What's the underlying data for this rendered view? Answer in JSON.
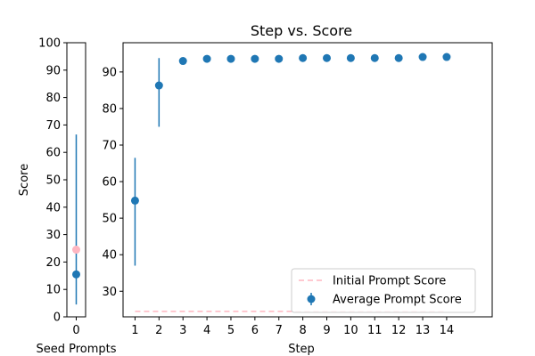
{
  "chart_data": [
    {
      "type": "scatter",
      "panel": "seed",
      "title": "",
      "xlabel": "Seed Prompts",
      "ylabel": "Score",
      "x_ticks": [
        "0"
      ],
      "y_ticks": [
        "0",
        "10",
        "20",
        "30",
        "40",
        "50",
        "60",
        "70",
        "80",
        "90",
        "100"
      ],
      "ylim": [
        0,
        100
      ],
      "series": [
        {
          "name": "Average Prompt Score",
          "color": "#1f77b4",
          "points": [
            {
              "x": 0,
              "y": 15.5,
              "err_low": 4.5,
              "err_high": 66.5
            }
          ]
        },
        {
          "name": "Initial Prompt Score",
          "color": "#ffb6c1",
          "points": [
            {
              "x": 0,
              "y": 24.5
            }
          ]
        }
      ]
    },
    {
      "type": "scatter",
      "panel": "steps",
      "title": "Step vs. Score",
      "xlabel": "Step",
      "ylabel": "",
      "x_ticks": [
        "1",
        "2",
        "3",
        "4",
        "5",
        "6",
        "7",
        "8",
        "9",
        "10",
        "11",
        "12",
        "13",
        "14"
      ],
      "y_ticks": [
        "30",
        "40",
        "50",
        "60",
        "70",
        "80",
        "90"
      ],
      "ylim": [
        23,
        98
      ],
      "xlim": [
        0.5,
        15.9
      ],
      "series": [
        {
          "name": "Average Prompt Score",
          "color": "#1f77b4",
          "points": [
            {
              "x": 1,
              "y": 54.8,
              "err_low": 37.0,
              "err_high": 66.5
            },
            {
              "x": 2,
              "y": 86.3,
              "err_low": 75.0,
              "err_high": 93.8
            },
            {
              "x": 3,
              "y": 93.0
            },
            {
              "x": 4,
              "y": 93.6
            },
            {
              "x": 5,
              "y": 93.6
            },
            {
              "x": 6,
              "y": 93.6
            },
            {
              "x": 7,
              "y": 93.6
            },
            {
              "x": 8,
              "y": 93.8
            },
            {
              "x": 9,
              "y": 93.8
            },
            {
              "x": 10,
              "y": 93.8
            },
            {
              "x": 11,
              "y": 93.8
            },
            {
              "x": 12,
              "y": 93.8
            },
            {
              "x": 13,
              "y": 94.1
            },
            {
              "x": 14,
              "y": 94.1
            }
          ]
        },
        {
          "name": "Initial Prompt Score",
          "color": "#ffb6c1",
          "style": "dashed",
          "line": {
            "x": [
              1,
              14
            ],
            "y": 24.5
          }
        }
      ],
      "legend": {
        "placement": "lower-right",
        "entries": [
          "Initial Prompt Score",
          "Average Prompt Score"
        ]
      }
    }
  ]
}
